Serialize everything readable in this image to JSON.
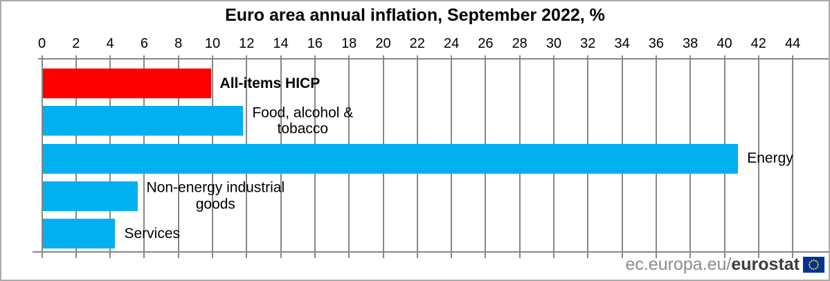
{
  "footer": {
    "url_prefix": "ec.europa.eu/",
    "url_bold": "eurostat"
  },
  "colors": {
    "emphasis_bar": "#ff0000",
    "default_bar": "#00b0f0",
    "gridline": "#878787",
    "frame_border": "#a9a9a9",
    "footer_prefix_text": "#8c8c8c",
    "footer_bold_text": "#3d3d3d",
    "eu_flag_blue": "#003399",
    "eu_flag_stars": "#ffcc00",
    "title_text": "#000000"
  },
  "chart_data": {
    "type": "bar",
    "orientation": "horizontal",
    "title": "Euro area annual inflation, September 2022, %",
    "categories": [
      "All-items HICP",
      "Food, alcohol &\ntobacco",
      "Energy",
      "Non-energy industrial\ngoods",
      "Services"
    ],
    "values": [
      9.9,
      11.8,
      40.8,
      5.6,
      4.3
    ],
    "bar_colors": [
      "#ff0000",
      "#00b0f0",
      "#00b0f0",
      "#00b0f0",
      "#00b0f0"
    ],
    "emphasized_category_index": 0,
    "xlim": [
      0,
      44
    ],
    "x_tick_step": 2,
    "x_ticks": [
      0,
      2,
      4,
      6,
      8,
      10,
      12,
      14,
      16,
      18,
      20,
      22,
      24,
      26,
      28,
      30,
      32,
      34,
      36,
      38,
      40,
      42,
      44
    ],
    "axis_position": "top",
    "grid": true,
    "legend": "none",
    "ylabel": "",
    "xlabel": ""
  }
}
